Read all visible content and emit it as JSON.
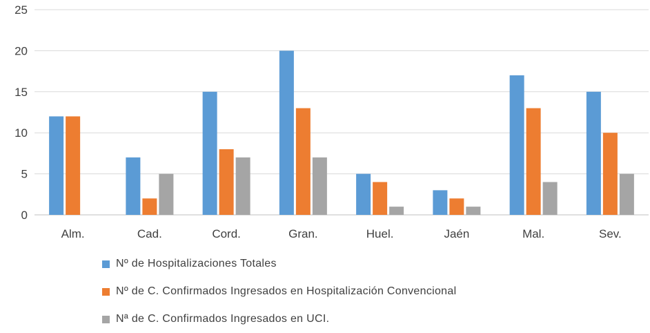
{
  "chart_data": {
    "type": "bar",
    "categories": [
      "Alm.",
      "Cad.",
      "Cord.",
      "Gran.",
      "Huel.",
      "Jaén",
      "Mal.",
      "Sev."
    ],
    "series": [
      {
        "name": "Nº de Hospitalizaciones Totales",
        "values": [
          12,
          7,
          15,
          20,
          5,
          3,
          17,
          15
        ],
        "color": "#5B9BD5"
      },
      {
        "name": "Nº de C. Confirmados Ingresados en Hospitalización Convencional",
        "values": [
          12,
          2,
          8,
          13,
          4,
          2,
          13,
          10
        ],
        "color": "#ED7D31"
      },
      {
        "name": "Nª de C. Confirmados Ingresados en UCI.",
        "values": [
          0,
          5,
          7,
          7,
          1,
          1,
          4,
          5
        ],
        "color": "#A5A5A5"
      }
    ],
    "yticks": [
      "0",
      "5",
      "10",
      "15",
      "20",
      "25"
    ],
    "ylim": [
      0,
      25
    ],
    "grid": true,
    "legend_position": "bottom",
    "title": "",
    "xlabel": "",
    "ylabel": ""
  }
}
